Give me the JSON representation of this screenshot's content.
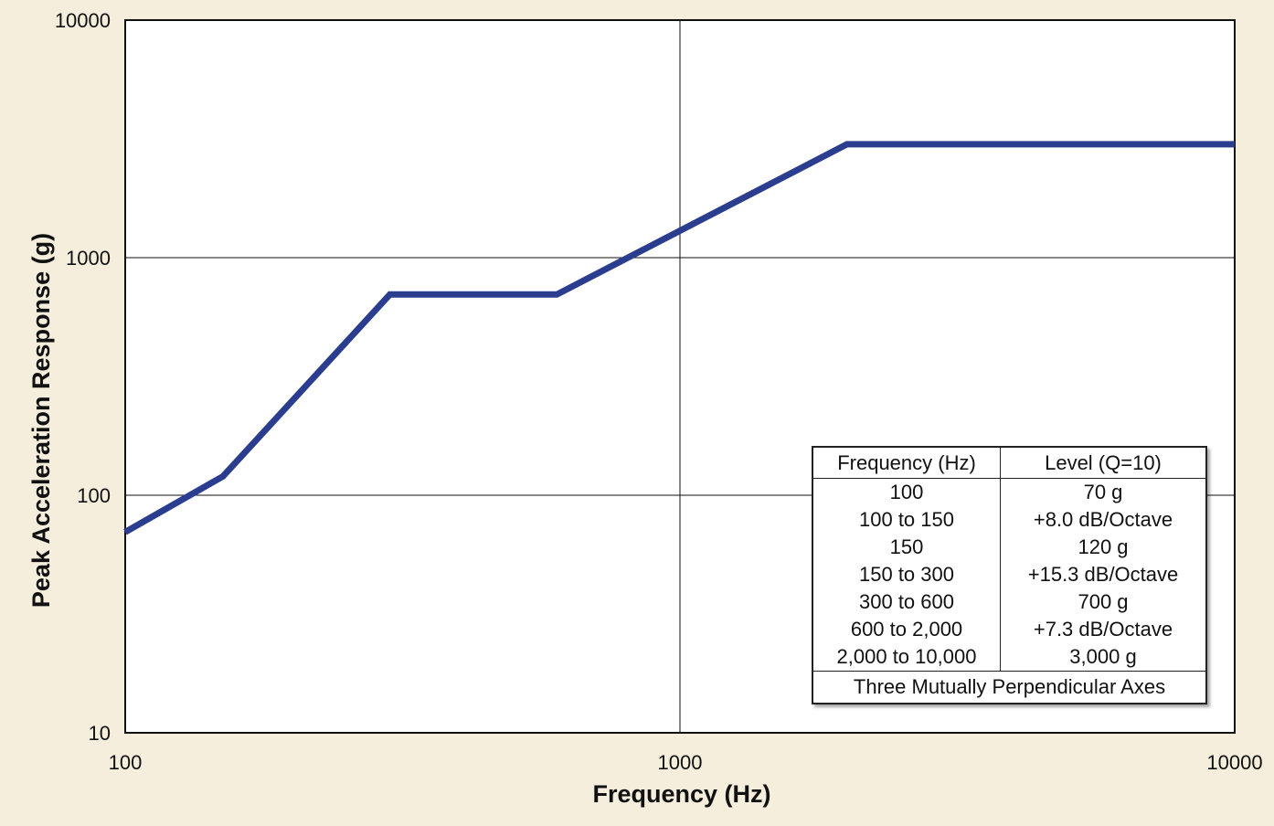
{
  "chart_data": {
    "type": "line",
    "xlabel": "Frequency (Hz)",
    "ylabel": "Peak Acceleration Response (g)",
    "x_scale": "log",
    "y_scale": "log",
    "xlim": [
      100,
      10000
    ],
    "ylim": [
      10,
      10000
    ],
    "x_ticks": [
      "100",
      "1000",
      "10000"
    ],
    "y_ticks": [
      "10",
      "100",
      "1000",
      "10000"
    ],
    "grid": true,
    "series": [
      {
        "color": "#2b3d8f",
        "x": [
          100,
          150,
          300,
          600,
          2000,
          10000
        ],
        "y": [
          70,
          120,
          700,
          700,
          3000,
          3000
        ]
      }
    ],
    "table": {
      "headers": [
        "Frequency (Hz)",
        "Level (Q=10)"
      ],
      "rows": [
        [
          "100",
          "70 g"
        ],
        [
          "100 to 150",
          "+8.0 dB/Octave"
        ],
        [
          "150",
          "120 g"
        ],
        [
          "150 to 300",
          "+15.3 dB/Octave"
        ],
        [
          "300 to 600",
          "700 g"
        ],
        [
          "600 to 2,000",
          "+7.3 dB/Octave"
        ],
        [
          "2,000 to 10,000",
          "3,000 g"
        ]
      ],
      "footer": "Three Mutually Perpendicular Axes"
    }
  }
}
